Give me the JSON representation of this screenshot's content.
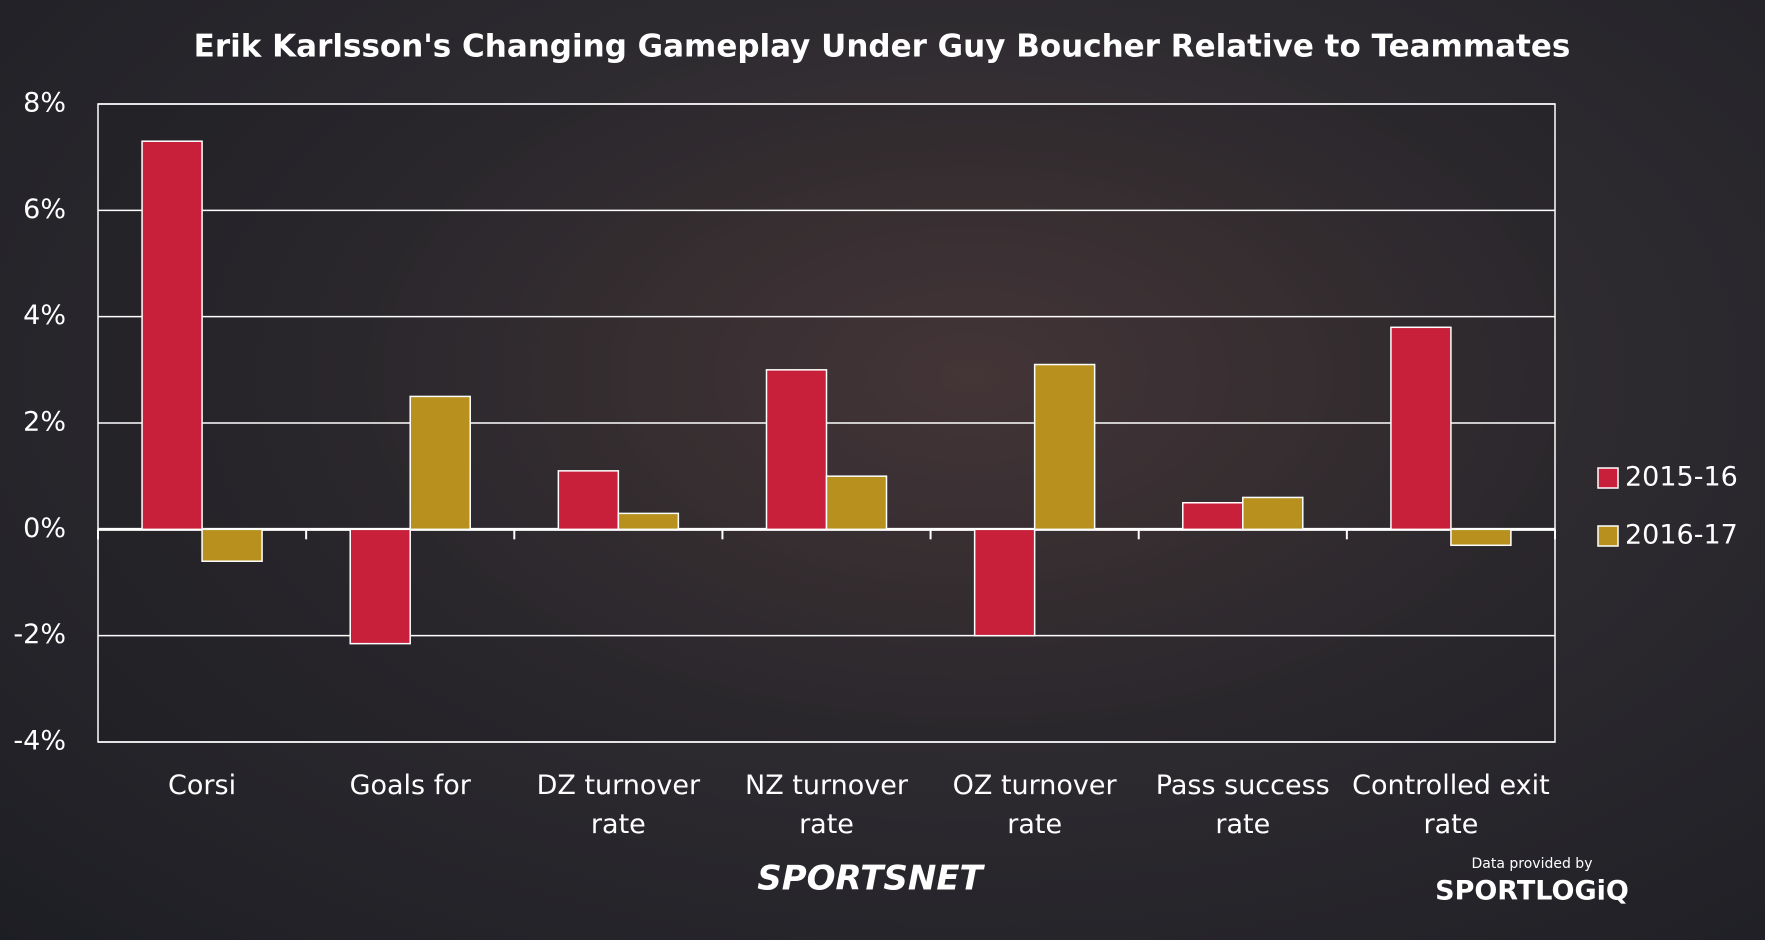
{
  "chart_data": {
    "type": "bar",
    "title": "Erik Karlsson's Changing Gameplay Under Guy Boucher Relative to Teammates",
    "categories": [
      "Corsi",
      "Goals for",
      "DZ turnover rate",
      "NZ turnover rate",
      "OZ turnover rate",
      "Pass success rate",
      "Controlled exit rate"
    ],
    "series": [
      {
        "name": "2015-16",
        "color": "#c81f3b",
        "values": [
          7.3,
          -2.15,
          1.1,
          3.0,
          -2.0,
          0.5,
          3.8
        ]
      },
      {
        "name": "2016-17",
        "color": "#b8901d",
        "values": [
          -0.6,
          2.5,
          0.3,
          1.0,
          3.1,
          0.6,
          -0.3
        ]
      }
    ],
    "ylim": [
      -4,
      8
    ],
    "yticks": [
      {
        "value": -4,
        "label": "-4%"
      },
      {
        "value": -2,
        "label": "-2%"
      },
      {
        "value": 0,
        "label": "0%"
      },
      {
        "value": 2,
        "label": "2%"
      },
      {
        "value": 4,
        "label": "4%"
      },
      {
        "value": 6,
        "label": "6%"
      },
      {
        "value": 8,
        "label": "8%"
      }
    ],
    "grid": true,
    "legend": "right",
    "logo": "SPORTSNET",
    "source_note": "Data provided by",
    "source_logo": "SPORTLOGiQ"
  }
}
